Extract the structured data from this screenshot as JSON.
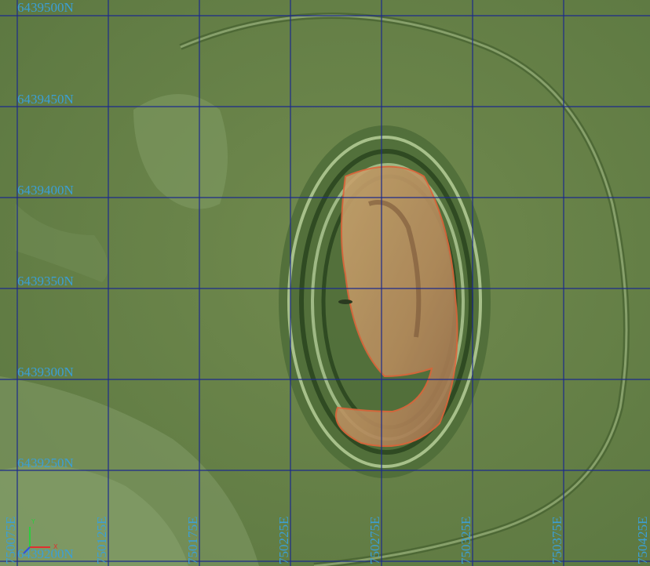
{
  "grid": {
    "northings": [
      "6439500N",
      "6439450N",
      "6439400N",
      "6439350N",
      "6439300N",
      "6439250N",
      "6439200N"
    ],
    "eastings": [
      "750075E",
      "750125E",
      "750175E",
      "750225E",
      "750275E",
      "750325E",
      "750375E",
      "750425E"
    ]
  },
  "axes": {
    "y": "Y",
    "x": "X"
  }
}
